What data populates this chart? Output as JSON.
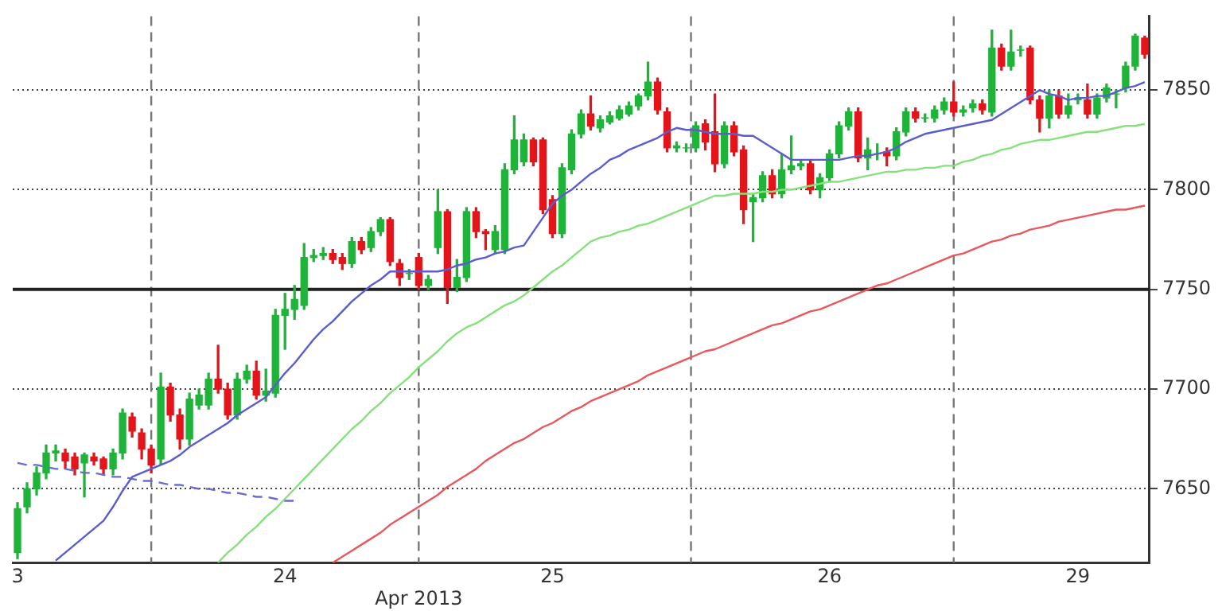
{
  "chart_data": {
    "type": "candlestick",
    "categories": [
      "3",
      null,
      null,
      null,
      null,
      null,
      null,
      null,
      null,
      null,
      null,
      null,
      null,
      null,
      null,
      null,
      null,
      null,
      null,
      null,
      null,
      null,
      null,
      null,
      null,
      null,
      null,
      null,
      "24",
      null,
      null,
      null,
      null,
      null,
      null,
      null,
      null,
      null,
      null,
      null,
      null,
      null,
      null,
      null,
      null,
      null,
      null,
      null,
      null,
      null,
      null,
      null,
      null,
      null,
      null,
      null,
      "25",
      null,
      null,
      null,
      null,
      null,
      null,
      null,
      null,
      null,
      null,
      null,
      null,
      null,
      null,
      null,
      null,
      null,
      null,
      null,
      null,
      null,
      null,
      null,
      null,
      null,
      null,
      null,
      null,
      "26",
      null,
      null,
      null,
      null,
      null,
      null,
      null,
      null,
      null,
      null,
      null,
      null,
      null,
      null,
      null,
      null,
      null,
      null,
      null,
      null,
      null,
      null,
      null,
      null,
      null,
      "29",
      null,
      null,
      null,
      null,
      null,
      null,
      null
    ],
    "ohlc": [
      [
        7618,
        7643,
        7615,
        7640
      ],
      [
        7641,
        7653,
        7638,
        7650
      ],
      [
        7650,
        7661,
        7647,
        7658
      ],
      [
        7658,
        7672,
        7655,
        7668
      ],
      [
        7668,
        7672,
        7664,
        7669
      ],
      [
        7668,
        7670,
        7660,
        7664
      ],
      [
        7666,
        7668,
        7657,
        7660
      ],
      [
        7663,
        7668,
        7646,
        7667
      ],
      [
        7666,
        7668,
        7662,
        7664
      ],
      [
        7665,
        7666,
        7657,
        7660
      ],
      [
        7660,
        7670,
        7657,
        7668
      ],
      [
        7668,
        7690,
        7665,
        7688
      ],
      [
        7686,
        7688,
        7676,
        7679
      ],
      [
        7678,
        7680,
        7665,
        7670
      ],
      [
        7670,
        7672,
        7658,
        7662
      ],
      [
        7665,
        7708,
        7662,
        7701
      ],
      [
        7701,
        7703,
        7684,
        7687
      ],
      [
        7687,
        7690,
        7670,
        7675
      ],
      [
        7675,
        7698,
        7672,
        7695
      ],
      [
        7692,
        7700,
        7690,
        7697
      ],
      [
        7692,
        7708,
        7690,
        7705
      ],
      [
        7705,
        7722,
        7698,
        7700
      ],
      [
        7700,
        7703,
        7685,
        7687
      ],
      [
        7687,
        7708,
        7685,
        7705
      ],
      [
        7705,
        7712,
        7703,
        7709
      ],
      [
        7709,
        7714,
        7695,
        7697
      ],
      [
        7697,
        7710,
        7694,
        7699
      ],
      [
        7698,
        7740,
        7696,
        7737
      ],
      [
        7737,
        7748,
        7720,
        7740
      ],
      [
        7740,
        7752,
        7735,
        7745
      ],
      [
        7742,
        7773,
        7740,
        7766
      ],
      [
        7766,
        7770,
        7764,
        7767
      ],
      [
        7767,
        7771,
        7765,
        7768
      ],
      [
        7768,
        7770,
        7763,
        7765
      ],
      [
        7766,
        7768,
        7760,
        7763
      ],
      [
        7763,
        7776,
        7761,
        7774
      ],
      [
        7774,
        7776,
        7768,
        7770
      ],
      [
        7771,
        7781,
        7769,
        7779
      ],
      [
        7779,
        7786,
        7777,
        7785
      ],
      [
        7785,
        7786,
        7762,
        7764
      ],
      [
        7763,
        7765,
        7752,
        7756
      ],
      [
        7758,
        7760,
        7755,
        7758
      ],
      [
        7766,
        7768,
        7750,
        7752
      ],
      [
        7752,
        7757,
        7750,
        7755
      ],
      [
        7771,
        7800,
        7768,
        7789
      ],
      [
        7789,
        7790,
        7743,
        7751
      ],
      [
        7751,
        7765,
        7749,
        7756
      ],
      [
        7756,
        7791,
        7754,
        7789
      ],
      [
        7789,
        7791,
        7776,
        7779
      ],
      [
        7779,
        7780,
        7770,
        7778
      ],
      [
        7770,
        7782,
        7768,
        7779
      ],
      [
        7770,
        7813,
        7768,
        7810
      ],
      [
        7810,
        7837,
        7808,
        7825
      ],
      [
        7814,
        7828,
        7812,
        7825
      ],
      [
        7825,
        7826,
        7812,
        7814
      ],
      [
        7825,
        7826,
        7788,
        7790
      ],
      [
        7795,
        7797,
        7776,
        7778
      ],
      [
        7778,
        7813,
        7776,
        7811
      ],
      [
        7810,
        7830,
        7808,
        7828
      ],
      [
        7828,
        7840,
        7826,
        7838
      ],
      [
        7838,
        7847,
        7830,
        7832
      ],
      [
        7831,
        7837,
        7829,
        7835
      ],
      [
        7834,
        7839,
        7833,
        7837
      ],
      [
        7836,
        7842,
        7835,
        7840
      ],
      [
        7838,
        7844,
        7837,
        7842
      ],
      [
        7842,
        7848,
        7840,
        7847
      ],
      [
        7847,
        7864,
        7845,
        7854
      ],
      [
        7854,
        7856,
        7838,
        7840
      ],
      [
        7839,
        7841,
        7819,
        7821
      ],
      [
        7821,
        7824,
        7819,
        7822
      ],
      [
        7821,
        7823,
        7819,
        7821
      ],
      [
        7821,
        7834,
        7819,
        7832
      ],
      [
        7833,
        7835,
        7820,
        7824
      ],
      [
        7829,
        7848,
        7809,
        7813
      ],
      [
        7813,
        7834,
        7811,
        7832
      ],
      [
        7832,
        7834,
        7817,
        7819
      ],
      [
        7820,
        7822,
        7783,
        7790
      ],
      [
        7794,
        7798,
        7774,
        7796
      ],
      [
        7796,
        7809,
        7794,
        7807
      ],
      [
        7807,
        7810,
        7796,
        7798
      ],
      [
        7798,
        7818,
        7796,
        7810
      ],
      [
        7810,
        7827,
        7808,
        7812
      ],
      [
        7812,
        7815,
        7810,
        7813
      ],
      [
        7813,
        7815,
        7798,
        7800
      ],
      [
        7800,
        7808,
        7796,
        7806
      ],
      [
        7806,
        7820,
        7804,
        7818
      ],
      [
        7818,
        7834,
        7816,
        7832
      ],
      [
        7832,
        7841,
        7830,
        7839
      ],
      [
        7839,
        7841,
        7814,
        7816
      ],
      [
        7816,
        7826,
        7810,
        7820
      ],
      [
        7818,
        7823,
        7815,
        7818
      ],
      [
        7819,
        7821,
        7812,
        7817
      ],
      [
        7817,
        7831,
        7815,
        7829
      ],
      [
        7829,
        7841,
        7827,
        7839
      ],
      [
        7839,
        7841,
        7834,
        7836
      ],
      [
        7836,
        7838,
        7834,
        7836
      ],
      [
        7836,
        7842,
        7834,
        7840
      ],
      [
        7840,
        7846,
        7838,
        7844
      ],
      [
        7844,
        7854,
        7837,
        7839
      ],
      [
        7839,
        7842,
        7837,
        7840
      ],
      [
        7841,
        7845,
        7839,
        7843
      ],
      [
        7843,
        7845,
        7838,
        7840
      ],
      [
        7839,
        7880,
        7837,
        7871
      ],
      [
        7871,
        7873,
        7860,
        7862
      ],
      [
        7862,
        7880,
        7860,
        7869
      ],
      [
        7870,
        7872,
        7867,
        7870
      ],
      [
        7871,
        7872,
        7843,
        7845
      ],
      [
        7845,
        7847,
        7829,
        7836
      ],
      [
        7836,
        7850,
        7831,
        7847
      ],
      [
        7847,
        7850,
        7836,
        7838
      ],
      [
        7838,
        7848,
        7836,
        7842
      ],
      [
        7845,
        7848,
        7843,
        7846
      ],
      [
        7845,
        7853,
        7836,
        7838
      ],
      [
        7838,
        7848,
        7836,
        7846
      ],
      [
        7846,
        7853,
        7844,
        7851
      ],
      [
        7848,
        7850,
        7841,
        7848
      ],
      [
        7851,
        7864,
        7849,
        7862
      ],
      [
        7862,
        7878,
        7860,
        7877
      ],
      [
        7876,
        7877,
        7866,
        7868
      ]
    ],
    "colors": [
      "#1fb33a",
      "#1fb33a",
      "#1fb33a",
      "#1fb33a",
      "#1fb33a",
      "#e3151b",
      "#e3151b",
      "#1fb33a",
      "#e3151b",
      "#e3151b",
      "#1fb33a",
      "#1fb33a",
      "#e3151b",
      "#e3151b",
      "#e3151b",
      "#1fb33a",
      "#e3151b",
      "#e3151b",
      "#1fb33a",
      "#1fb33a",
      "#1fb33a",
      "#e3151b",
      "#e3151b",
      "#1fb33a",
      "#1fb33a",
      "#e3151b",
      "#1fb33a",
      "#1fb33a",
      "#1fb33a",
      "#1fb33a",
      "#1fb33a",
      "#1fb33a",
      "#1fb33a",
      "#e3151b",
      "#e3151b",
      "#1fb33a",
      "#e3151b",
      "#1fb33a",
      "#1fb33a",
      "#e3151b",
      "#e3151b",
      "#1fb33a",
      "#e3151b",
      "#1fb33a",
      "#1fb33a",
      "#e3151b",
      "#1fb33a",
      "#1fb33a",
      "#e3151b",
      "#e3151b",
      "#1fb33a",
      "#1fb33a",
      "#1fb33a",
      "#1fb33a",
      "#e3151b",
      "#e3151b",
      "#e3151b",
      "#1fb33a",
      "#1fb33a",
      "#1fb33a",
      "#e3151b",
      "#1fb33a",
      "#1fb33a",
      "#1fb33a",
      "#1fb33a",
      "#1fb33a",
      "#1fb33a",
      "#e3151b",
      "#e3151b",
      "#1fb33a",
      "#1fb33a",
      "#1fb33a",
      "#e3151b",
      "#e3151b",
      "#1fb33a",
      "#e3151b",
      "#e3151b",
      "#1fb33a",
      "#1fb33a",
      "#e3151b",
      "#1fb33a",
      "#1fb33a",
      "#1fb33a",
      "#e3151b",
      "#1fb33a",
      "#1fb33a",
      "#1fb33a",
      "#1fb33a",
      "#e3151b",
      "#1fb33a",
      "#1fb33a",
      "#e3151b",
      "#1fb33a",
      "#1fb33a",
      "#e3151b",
      "#1fb33a",
      "#1fb33a",
      "#1fb33a",
      "#e3151b",
      "#1fb33a",
      "#1fb33a",
      "#e3151b",
      "#1fb33a",
      "#e3151b",
      "#1fb33a",
      "#1fb33a",
      "#e3151b",
      "#e3151b",
      "#1fb33a",
      "#e3151b",
      "#1fb33a",
      "#1fb33a",
      "#e3151b",
      "#1fb33a",
      "#1fb33a",
      "#1fb33a",
      "#1fb33a",
      "#1fb33a",
      "#e3151b"
    ],
    "series": [
      {
        "type": "line",
        "color": "#5a5ccf",
        "values": [
          null,
          null,
          null,
          null,
          7614,
          7618,
          7622,
          7626,
          7630,
          7634,
          7641,
          7649,
          7656,
          7658,
          7660,
          7662,
          7664,
          7667,
          7671,
          7674,
          7677,
          7680,
          7683,
          7687,
          7690,
          7693,
          7696,
          7702,
          7708,
          7713,
          7719,
          7725,
          7730,
          7734,
          7739,
          7744,
          7748,
          7752,
          7755,
          7759,
          7759,
          7759,
          7759,
          7759,
          7759,
          7760,
          7762,
          7763,
          7765,
          7766,
          7768,
          7769,
          7771,
          7772,
          7779,
          7786,
          7793,
          7797,
          7800,
          7804,
          7808,
          7811,
          7815,
          7817,
          7820,
          7822,
          7824,
          7826,
          7829,
          7831,
          7830,
          7830,
          7829,
          7828,
          7828,
          7828,
          7827,
          7827,
          7824,
          7821,
          7818,
          7815,
          7815,
          7815,
          7815,
          7815,
          7815,
          7816,
          7817,
          7817,
          7818,
          7819,
          7821,
          7824,
          7826,
          7828,
          7829,
          7830,
          7831,
          7832,
          7833,
          7834,
          7835,
          7838,
          7841,
          7844,
          7847,
          7850,
          7848,
          7847,
          7845,
          7846,
          7846,
          7847,
          7847,
          7849,
          7851,
          7852,
          7854
        ]
      },
      {
        "type": "line",
        "color": "#86e07c",
        "values": [
          null,
          null,
          null,
          null,
          null,
          null,
          null,
          null,
          null,
          null,
          null,
          null,
          null,
          null,
          null,
          null,
          null,
          null,
          null,
          null,
          null,
          7613,
          7618,
          7622,
          7627,
          7631,
          7636,
          7640,
          7645,
          7650,
          7655,
          7660,
          7665,
          7670,
          7675,
          7680,
          7684,
          7689,
          7693,
          7698,
          7702,
          7706,
          7711,
          7715,
          7719,
          7724,
          7728,
          7731,
          7733,
          7736,
          7739,
          7742,
          7744,
          7747,
          7751,
          7755,
          7759,
          7762,
          7766,
          7770,
          7774,
          7776,
          7777,
          7779,
          7780,
          7782,
          7783,
          7785,
          7787,
          7789,
          7791,
          7793,
          7795,
          7797,
          7797,
          7798,
          7798,
          7798,
          7799,
          7799,
          7800,
          7800,
          7801,
          7802,
          7803,
          7804,
          7804,
          7805,
          7806,
          7807,
          7808,
          7809,
          7809,
          7810,
          7810,
          7811,
          7811,
          7812,
          7812,
          7814,
          7815,
          7817,
          7818,
          7820,
          7821,
          7823,
          7824,
          7825,
          7825,
          7826,
          7827,
          7828,
          7829,
          7829,
          7830,
          7831,
          7832,
          7832,
          7833
        ]
      },
      {
        "type": "line",
        "color": "#e8585c",
        "values": [
          null,
          null,
          null,
          null,
          null,
          null,
          null,
          null,
          null,
          null,
          null,
          null,
          null,
          null,
          null,
          null,
          null,
          null,
          null,
          null,
          null,
          null,
          null,
          null,
          null,
          null,
          null,
          null,
          null,
          null,
          null,
          null,
          null,
          7613,
          7616,
          7619,
          7622,
          7625,
          7628,
          7632,
          7635,
          7638,
          7641,
          7644,
          7647,
          7651,
          7654,
          7657,
          7660,
          7664,
          7667,
          7670,
          7673,
          7675,
          7678,
          7681,
          7683,
          7686,
          7689,
          7691,
          7694,
          7696,
          7698,
          7700,
          7702,
          7704,
          7707,
          7709,
          7711,
          7713,
          7715,
          7717,
          7719,
          7720,
          7722,
          7724,
          7726,
          7728,
          7730,
          7732,
          7733,
          7735,
          7737,
          7739,
          7740,
          7742,
          7744,
          7746,
          7748,
          7750,
          7752,
          7753,
          7755,
          7757,
          7759,
          7761,
          7763,
          7765,
          7767,
          7768,
          7770,
          7772,
          7774,
          7775,
          7777,
          7778,
          7780,
          7781,
          7782,
          7784,
          7785,
          7786,
          7787,
          7788,
          7789,
          7790,
          7790,
          7791,
          7792
        ]
      },
      {
        "type": "line",
        "color": "#6a6ccf",
        "line_style": "dashed",
        "values": [
          7663,
          7662,
          7662,
          7661,
          7660,
          7660,
          7659,
          7658,
          7658,
          7657,
          7656,
          7656,
          7655,
          7654,
          7654,
          7653,
          7652,
          7652,
          7651,
          7650,
          7650,
          7649,
          7648,
          7648,
          7647,
          7646,
          7646,
          7645,
          7644,
          7644,
          null,
          null,
          null,
          null,
          null,
          null,
          null,
          null,
          null,
          null,
          null,
          null,
          null,
          null,
          null,
          null,
          null,
          null,
          null,
          null,
          null,
          null,
          null,
          null,
          null,
          null,
          null,
          null,
          null,
          null,
          null,
          null,
          null,
          null,
          null,
          null,
          null,
          null,
          null,
          null,
          null,
          null,
          null,
          null,
          null,
          null,
          null,
          null,
          null,
          null,
          null,
          null,
          null,
          null,
          null,
          null,
          null,
          null,
          null,
          null,
          null,
          null,
          null,
          null,
          null,
          null,
          null,
          null,
          null,
          null,
          null,
          null,
          null,
          null,
          null,
          null,
          null,
          null,
          null,
          null,
          null,
          null,
          null,
          null,
          null,
          null,
          null,
          null,
          null
        ]
      }
    ],
    "ylim": [
      7613,
      7887
    ],
    "yticks": [
      7650,
      7700,
      7750,
      7800,
      7850
    ],
    "grid": "y",
    "legend": false,
    "ref_lines": [
      {
        "axis": "y",
        "value": 7750,
        "color": "#222222",
        "line_style": "solid"
      }
    ],
    "annotations": [
      "Apr 2013"
    ]
  }
}
